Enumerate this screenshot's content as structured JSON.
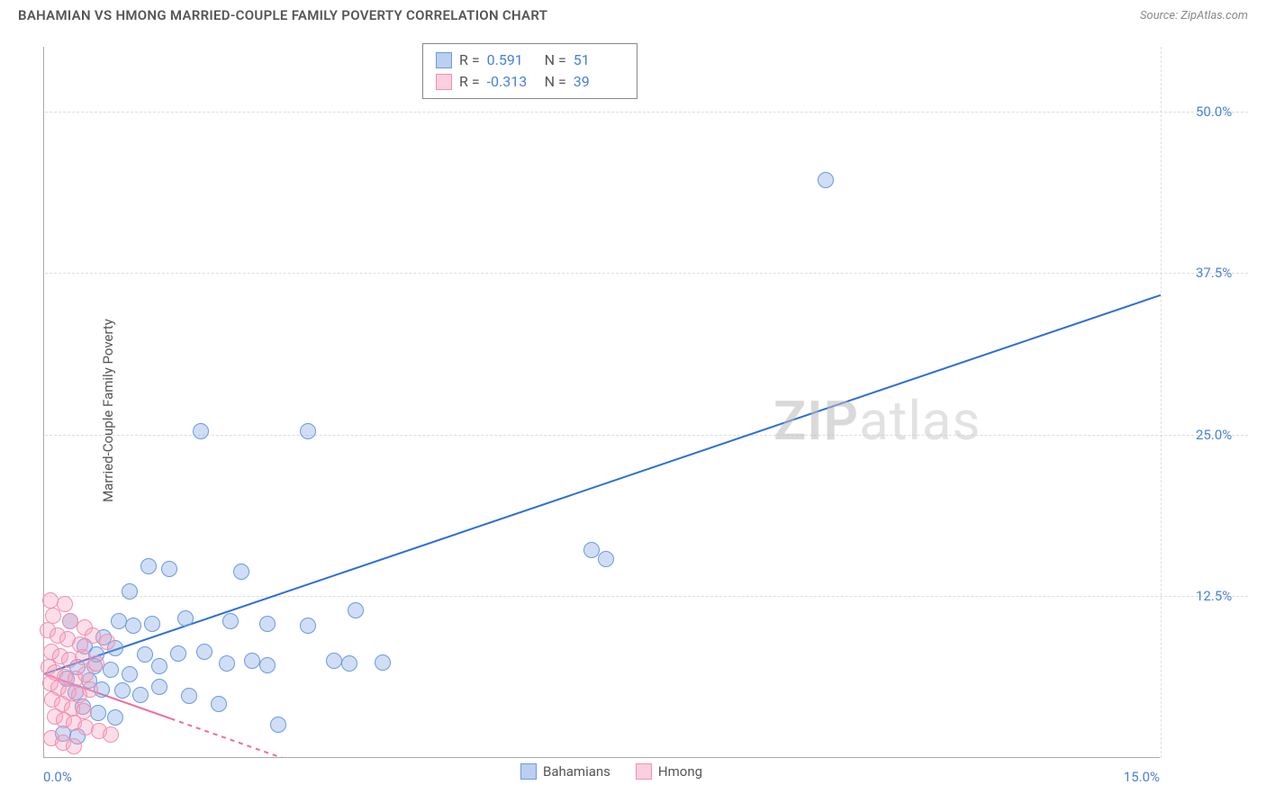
{
  "header": {
    "title": "BAHAMIAN VS HMONG MARRIED-COUPLE FAMILY POVERTY CORRELATION CHART",
    "source": "Source: ZipAtlas.com"
  },
  "chart": {
    "type": "scatter",
    "ylabel": "Married-Couple Family Poverty",
    "watermark_a": "ZIP",
    "watermark_b": "atlas",
    "xlim": [
      0,
      15
    ],
    "ylim": [
      0,
      55
    ],
    "yticks": [
      {
        "v": 12.5,
        "label": "12.5%"
      },
      {
        "v": 25.0,
        "label": "25.0%"
      },
      {
        "v": 37.5,
        "label": "37.5%"
      },
      {
        "v": 50.0,
        "label": "50.0%"
      }
    ],
    "xticks": [
      {
        "v": 0.0,
        "label": "0.0%"
      },
      {
        "v": 15.0,
        "label": "15.0%"
      }
    ],
    "gridline_color": "#dddddd",
    "axis_color": "#aaaaaa",
    "tick_label_color": "#4a7fd8",
    "stats": [
      {
        "swatch": "blue",
        "r_label": "R =",
        "r": "0.591",
        "n_label": "N =",
        "n": "51"
      },
      {
        "swatch": "pink",
        "r_label": "R =",
        "r": "-0.313",
        "n_label": "N =",
        "n": "39"
      }
    ],
    "series": [
      {
        "name": "Bahamians",
        "color_fill": "rgba(120,160,225,0.35)",
        "color_stroke": "#6a9ae0",
        "marker_r": 9,
        "trend": {
          "x1": 0.0,
          "y1": 6.5,
          "x2": 15.0,
          "y2": 35.8,
          "stroke": "#2e6fd6",
          "width": 2,
          "dash": "none"
        },
        "points": [
          {
            "x": 10.5,
            "y": 44.7
          },
          {
            "x": 2.1,
            "y": 25.3
          },
          {
            "x": 3.55,
            "y": 25.3
          },
          {
            "x": 7.35,
            "y": 16.1
          },
          {
            "x": 7.55,
            "y": 15.4
          },
          {
            "x": 1.4,
            "y": 14.8
          },
          {
            "x": 1.68,
            "y": 14.6
          },
          {
            "x": 2.65,
            "y": 14.4
          },
          {
            "x": 1.15,
            "y": 12.9
          },
          {
            "x": 4.18,
            "y": 11.4
          },
          {
            "x": 0.35,
            "y": 10.6
          },
          {
            "x": 1.0,
            "y": 10.6
          },
          {
            "x": 1.2,
            "y": 10.2
          },
          {
            "x": 1.45,
            "y": 10.4
          },
          {
            "x": 1.9,
            "y": 10.8
          },
          {
            "x": 2.5,
            "y": 10.6
          },
          {
            "x": 3.0,
            "y": 10.4
          },
          {
            "x": 3.55,
            "y": 10.2
          },
          {
            "x": 0.8,
            "y": 9.3
          },
          {
            "x": 0.55,
            "y": 8.6
          },
          {
            "x": 0.7,
            "y": 8.0
          },
          {
            "x": 0.95,
            "y": 8.5
          },
          {
            "x": 1.35,
            "y": 8.0
          },
          {
            "x": 1.8,
            "y": 8.1
          },
          {
            "x": 2.15,
            "y": 8.2
          },
          {
            "x": 0.45,
            "y": 7.0
          },
          {
            "x": 0.68,
            "y": 7.1
          },
          {
            "x": 0.9,
            "y": 6.8
          },
          {
            "x": 1.15,
            "y": 6.5
          },
          {
            "x": 1.55,
            "y": 7.1
          },
          {
            "x": 0.3,
            "y": 6.1
          },
          {
            "x": 0.6,
            "y": 6.0
          },
          {
            "x": 2.45,
            "y": 7.3
          },
          {
            "x": 2.8,
            "y": 7.5
          },
          {
            "x": 3.0,
            "y": 7.2
          },
          {
            "x": 3.9,
            "y": 7.5
          },
          {
            "x": 4.1,
            "y": 7.3
          },
          {
            "x": 4.55,
            "y": 7.4
          },
          {
            "x": 0.42,
            "y": 5.1
          },
          {
            "x": 0.78,
            "y": 5.3
          },
          {
            "x": 1.05,
            "y": 5.2
          },
          {
            "x": 1.3,
            "y": 4.9
          },
          {
            "x": 1.55,
            "y": 5.5
          },
          {
            "x": 1.95,
            "y": 4.8
          },
          {
            "x": 2.35,
            "y": 4.2
          },
          {
            "x": 3.15,
            "y": 2.6
          },
          {
            "x": 0.52,
            "y": 4.0
          },
          {
            "x": 0.72,
            "y": 3.5
          },
          {
            "x": 0.95,
            "y": 3.1
          },
          {
            "x": 0.25,
            "y": 1.9
          },
          {
            "x": 0.45,
            "y": 1.7
          }
        ]
      },
      {
        "name": "Hmong",
        "color_fill": "rgba(245,160,190,0.35)",
        "color_stroke": "#f090b0",
        "marker_r": 9,
        "trend": {
          "x1": 0.0,
          "y1": 6.5,
          "x2": 3.2,
          "y2": 0.0,
          "stroke": "#f26aa0",
          "width": 2,
          "dash": "5,5",
          "solid_to_x": 1.7
        },
        "points": [
          {
            "x": 0.08,
            "y": 12.2
          },
          {
            "x": 0.28,
            "y": 11.9
          },
          {
            "x": 0.12,
            "y": 11.0
          },
          {
            "x": 0.35,
            "y": 10.6
          },
          {
            "x": 0.55,
            "y": 10.1
          },
          {
            "x": 0.05,
            "y": 9.9
          },
          {
            "x": 0.18,
            "y": 9.5
          },
          {
            "x": 0.32,
            "y": 9.2
          },
          {
            "x": 0.48,
            "y": 8.8
          },
          {
            "x": 0.65,
            "y": 9.5
          },
          {
            "x": 0.85,
            "y": 9.0
          },
          {
            "x": 0.1,
            "y": 8.2
          },
          {
            "x": 0.22,
            "y": 7.9
          },
          {
            "x": 0.34,
            "y": 7.6
          },
          {
            "x": 0.52,
            "y": 7.8
          },
          {
            "x": 0.7,
            "y": 7.3
          },
          {
            "x": 0.06,
            "y": 7.0
          },
          {
            "x": 0.15,
            "y": 6.6
          },
          {
            "x": 0.28,
            "y": 6.3
          },
          {
            "x": 0.42,
            "y": 6.1
          },
          {
            "x": 0.56,
            "y": 6.5
          },
          {
            "x": 0.08,
            "y": 5.8
          },
          {
            "x": 0.19,
            "y": 5.4
          },
          {
            "x": 0.33,
            "y": 5.1
          },
          {
            "x": 0.47,
            "y": 4.9
          },
          {
            "x": 0.62,
            "y": 5.3
          },
          {
            "x": 0.11,
            "y": 4.5
          },
          {
            "x": 0.24,
            "y": 4.2
          },
          {
            "x": 0.38,
            "y": 3.8
          },
          {
            "x": 0.53,
            "y": 3.6
          },
          {
            "x": 0.14,
            "y": 3.2
          },
          {
            "x": 0.27,
            "y": 2.9
          },
          {
            "x": 0.4,
            "y": 2.7
          },
          {
            "x": 0.56,
            "y": 2.4
          },
          {
            "x": 0.74,
            "y": 2.1
          },
          {
            "x": 0.9,
            "y": 1.8
          },
          {
            "x": 0.1,
            "y": 1.5
          },
          {
            "x": 0.25,
            "y": 1.2
          },
          {
            "x": 0.4,
            "y": 0.9
          }
        ]
      }
    ],
    "legend": [
      {
        "swatch": "blue",
        "label": "Bahamians"
      },
      {
        "swatch": "pink",
        "label": "Hmong"
      }
    ]
  }
}
